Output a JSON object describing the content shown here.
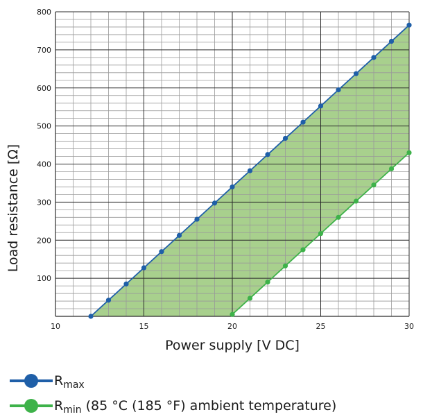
{
  "chart_data": {
    "type": "line",
    "xlabel": "Power supply [V DC]",
    "ylabel": "Load resistance [Ω]",
    "xlim": [
      10,
      30
    ],
    "ylim": [
      0,
      800
    ],
    "x_ticks": [
      "10",
      "15",
      "20",
      "25",
      "30"
    ],
    "y_ticks": [
      "100",
      "200",
      "300",
      "400",
      "500",
      "600",
      "700",
      "800"
    ],
    "grid": "major every 5 V / 100 Ω, minor every 1 V / 20 Ω",
    "fill_between_series": "light green",
    "series": [
      {
        "name": "R",
        "subscript": "max",
        "suffix": "",
        "color": "#1f5fa8",
        "x": [
          12,
          13,
          14,
          15,
          16,
          17,
          18,
          19,
          20,
          21,
          22,
          23,
          24,
          25,
          26,
          27,
          28,
          29,
          30
        ],
        "y": [
          0,
          42.5,
          85,
          127.5,
          170,
          212.5,
          255,
          297.5,
          340,
          382.5,
          425,
          467.5,
          510,
          552.5,
          595,
          637.5,
          680,
          722.5,
          765
        ]
      },
      {
        "name": "R",
        "subscript": "min",
        "suffix": " (85 °C (185 °F) ambient temperature)",
        "color": "#3eb24a",
        "x": [
          20,
          21,
          22,
          23,
          24,
          25,
          26,
          27,
          28,
          29,
          30
        ],
        "y": [
          5,
          47.5,
          90,
          132.5,
          175,
          217.5,
          260,
          302.5,
          345,
          387.5,
          430
        ]
      }
    ]
  }
}
